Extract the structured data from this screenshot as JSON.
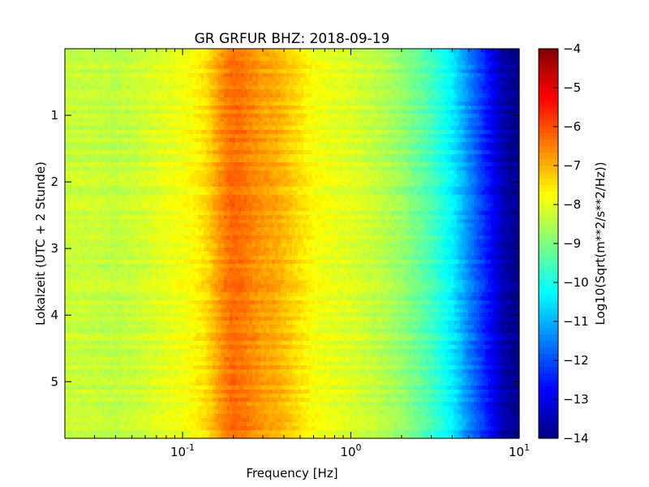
{
  "chart_data": {
    "type": "heatmap",
    "title": "GR GRFUR BHZ: 2018-09-19",
    "xlabel": "Frequency [Hz]",
    "ylabel": "Lokalzeit (UTC + 2 Stunde)",
    "x_scale": "log",
    "xlim": [
      0.02,
      10
    ],
    "ylim": [
      5.85,
      0
    ],
    "x_ticks": [
      {
        "value": 0.1,
        "base": "10",
        "exp": "-1"
      },
      {
        "value": 1,
        "base": "10",
        "exp": "0"
      },
      {
        "value": 10,
        "base": "10",
        "exp": "1"
      }
    ],
    "y_ticks": [
      {
        "value": 1,
        "label": "1"
      },
      {
        "value": 2,
        "label": "2"
      },
      {
        "value": 3,
        "label": "3"
      },
      {
        "value": 4,
        "label": "4"
      },
      {
        "value": 5,
        "label": "5"
      }
    ],
    "colorbar": {
      "label": "Log10(Sqrt(m**2/s**2/Hz))",
      "range": [
        -14,
        -4
      ],
      "colormap": "jet",
      "ticks": [
        {
          "value": -4,
          "label": "−4"
        },
        {
          "value": -5,
          "label": "−5"
        },
        {
          "value": -6,
          "label": "−6"
        },
        {
          "value": -7,
          "label": "−7"
        },
        {
          "value": -8,
          "label": "−8"
        },
        {
          "value": -9,
          "label": "−9"
        },
        {
          "value": -10,
          "label": "−10"
        },
        {
          "value": -11,
          "label": "−11"
        },
        {
          "value": -12,
          "label": "−12"
        },
        {
          "value": -13,
          "label": "−13"
        },
        {
          "value": -14,
          "label": "−14"
        }
      ]
    },
    "spectrum_profile": {
      "frequency_hz": [
        0.02,
        0.03,
        0.04,
        0.05,
        0.06,
        0.08,
        0.1,
        0.12,
        0.14,
        0.16,
        0.18,
        0.2,
        0.23,
        0.26,
        0.3,
        0.35,
        0.4,
        0.5,
        0.6,
        0.8,
        1.0,
        1.3,
        1.6,
        2.0,
        2.5,
        3.0,
        3.5,
        4.0,
        4.5,
        5.0,
        6.0,
        7.0,
        8.0,
        9.0,
        10.0
      ],
      "level": [
        -8.3,
        -8.3,
        -8.4,
        -8.3,
        -8.2,
        -8.0,
        -7.9,
        -7.7,
        -7.4,
        -6.9,
        -6.5,
        -6.3,
        -6.4,
        -6.6,
        -6.8,
        -6.9,
        -7.1,
        -7.5,
        -7.8,
        -8.0,
        -8.1,
        -8.3,
        -8.5,
        -8.8,
        -9.2,
        -9.6,
        -10.0,
        -10.4,
        -10.9,
        -11.4,
        -12.2,
        -12.9,
        -13.5,
        -13.8,
        -13.9
      ]
    }
  }
}
